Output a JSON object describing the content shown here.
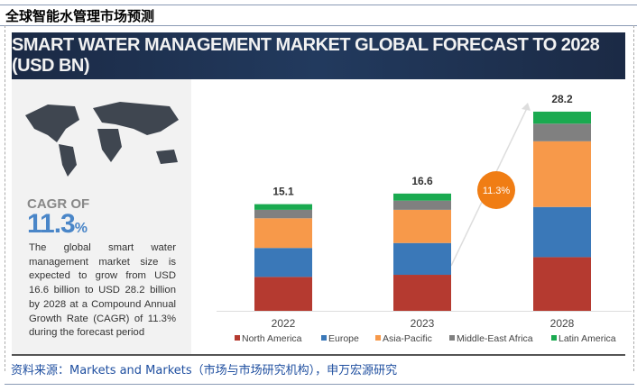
{
  "page_title": "全球智能水管理市场预测",
  "banner_title": "SMART WATER MANAGEMENT MARKET GLOBAL FORECAST TO 2028 (USD BN)",
  "side": {
    "cagr_label": "CAGR OF",
    "cagr_value": "11.3",
    "cagr_unit": "%",
    "description": "The global smart water management market size is expected to grow from USD 16.6 billion to USD 28.2 billion by 2028 at a Compound Annual Growth Rate (CAGR) of 11.3% during the forecast period"
  },
  "source": "资料来源：Markets and Markets（市场与市场研究机构），申万宏源研究",
  "chart_data": {
    "type": "bar",
    "stacked": true,
    "title": "SMART WATER MANAGEMENT MARKET GLOBAL FORECAST TO 2028 (USD BN)",
    "categories": [
      "2022",
      "2023",
      "2028"
    ],
    "totals": [
      "15.1",
      "16.6",
      "28.2"
    ],
    "cagr_badge": "11.3%",
    "legend_position": "bottom",
    "grid": false,
    "series": [
      {
        "name": "North America",
        "color": "#b53a30",
        "values": [
          4.8,
          5.1,
          7.6
        ]
      },
      {
        "name": "Europe",
        "color": "#3a78b8",
        "values": [
          4.1,
          4.5,
          7.1
        ]
      },
      {
        "name": "Asia-Pacific",
        "color": "#f7994a",
        "values": [
          4.2,
          4.7,
          9.3
        ]
      },
      {
        "name": "Middle-East Africa",
        "color": "#808080",
        "values": [
          1.2,
          1.3,
          2.5
        ]
      },
      {
        "name": "Latin America",
        "color": "#1aaa50",
        "values": [
          0.8,
          1.0,
          1.7
        ]
      }
    ]
  }
}
